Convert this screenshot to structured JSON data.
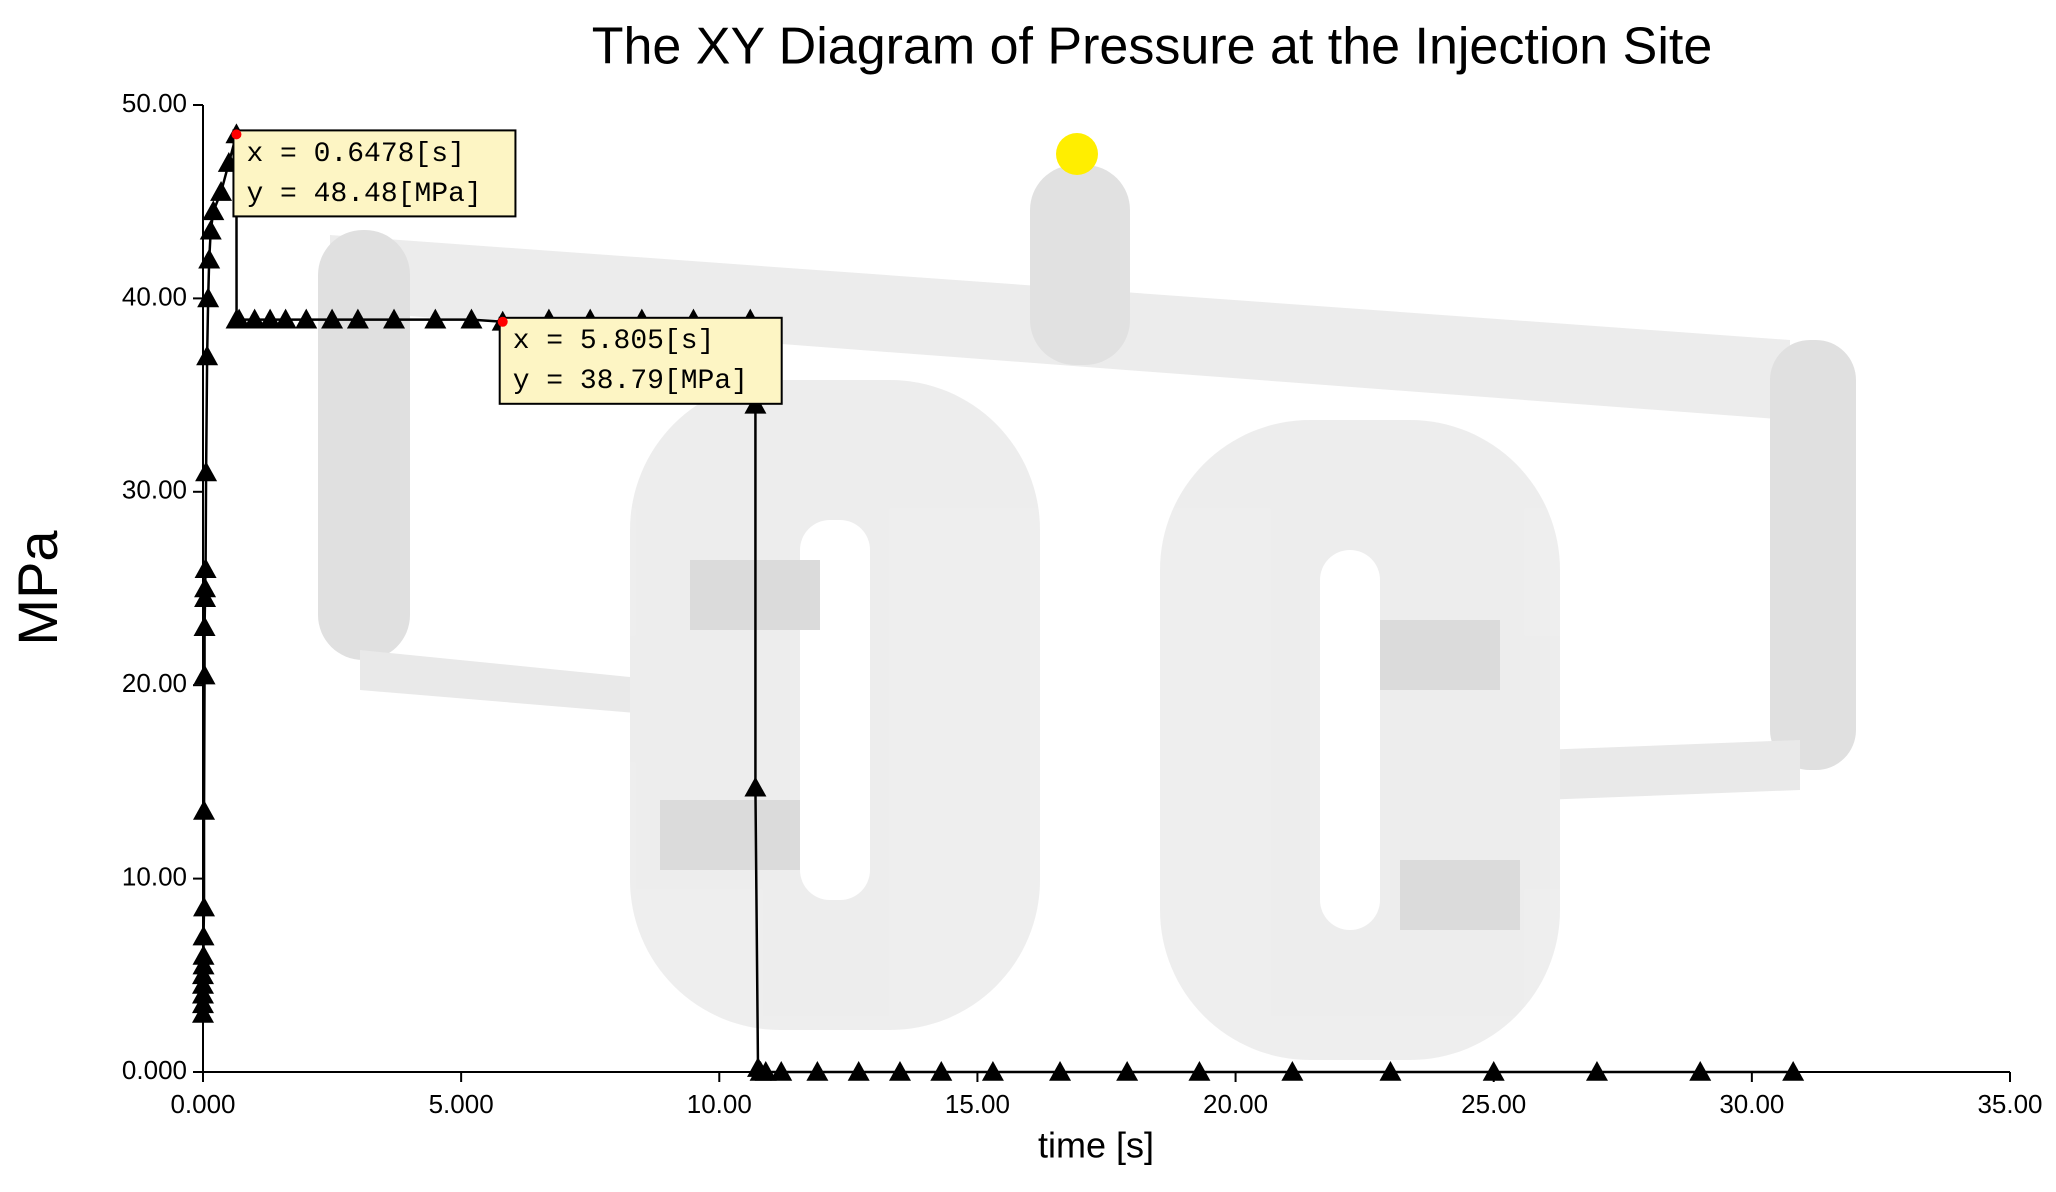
{
  "chart_data": {
    "type": "line",
    "title": "The XY Diagram of Pressure at the Injection Site",
    "x_label": "time [s]",
    "y_label": "MPa",
    "color": "#000000",
    "marker": "triangle",
    "x": [
      0.0,
      0.0,
      0.0,
      0.0,
      0.0,
      0.01,
      0.01,
      0.01,
      0.02,
      0.02,
      0.03,
      0.03,
      0.04,
      0.04,
      0.05,
      0.06,
      0.08,
      0.1,
      0.12,
      0.15,
      0.2,
      0.35,
      0.5,
      0.6478,
      0.65,
      0.7,
      1.0,
      1.3,
      1.6,
      2.0,
      2.5,
      3.0,
      3.7,
      4.5,
      5.2,
      5.805,
      6.7,
      7.5,
      8.5,
      9.5,
      10.6,
      10.7,
      10.7,
      10.75,
      10.8,
      10.9,
      11.2,
      11.9,
      12.7,
      13.5,
      14.3,
      15.3,
      16.6,
      17.9,
      19.3,
      21.1,
      23.0,
      25.0,
      27.0,
      29.0,
      30.8
    ],
    "values": [
      3.0,
      3.5,
      4.0,
      4.5,
      5.0,
      5.5,
      6.0,
      7.0,
      8.5,
      13.5,
      20.5,
      23.0,
      24.5,
      25.0,
      26.0,
      31.0,
      37.0,
      40.0,
      42.0,
      43.5,
      44.5,
      45.5,
      47.0,
      48.48,
      38.9,
      38.9,
      38.9,
      38.9,
      38.9,
      38.9,
      38.9,
      38.9,
      38.9,
      38.9,
      38.9,
      38.79,
      38.9,
      38.9,
      38.9,
      38.9,
      38.9,
      34.5,
      14.7,
      0.2,
      0.0,
      0.0,
      0.0,
      0.0,
      0.0,
      0.0,
      0.0,
      0.0,
      0.0,
      0.0,
      0.0,
      0.0,
      0.0,
      0.0,
      0.0,
      0.0,
      0.0
    ],
    "xlim": [
      0,
      35
    ],
    "ylim": [
      0,
      50
    ],
    "xticks": [
      {
        "value": 0,
        "label": "0.000"
      },
      {
        "value": 5,
        "label": "5.000"
      },
      {
        "value": 10,
        "label": "10.00"
      },
      {
        "value": 15,
        "label": "15.00"
      },
      {
        "value": 20,
        "label": "20.00"
      },
      {
        "value": 25,
        "label": "25.00"
      },
      {
        "value": 30,
        "label": "30.00"
      },
      {
        "value": 35,
        "label": "35.00"
      }
    ],
    "yticks": [
      {
        "value": 0,
        "label": "0.000"
      },
      {
        "value": 10,
        "label": "10.00"
      },
      {
        "value": 20,
        "label": "20.00"
      },
      {
        "value": 30,
        "label": "30.00"
      },
      {
        "value": 40,
        "label": "40.00"
      },
      {
        "value": 50,
        "label": "50.00"
      }
    ],
    "annotations": [
      {
        "x": 0.6478,
        "y": 48.48,
        "lines": [
          "x = 0.6478[s]",
          "y = 48.48[MPa]"
        ]
      },
      {
        "x": 5.805,
        "y": 38.79,
        "lines": [
          "x = 5.805[s]",
          "y = 38.79[MPa]"
        ]
      }
    ]
  }
}
